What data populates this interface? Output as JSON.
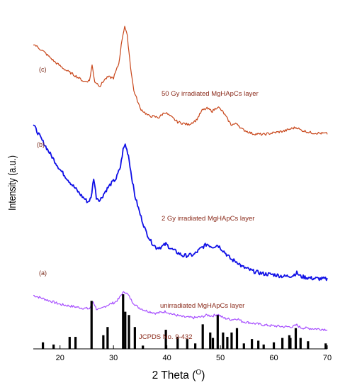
{
  "chart_data": {
    "type": "line",
    "xlabel": "2 Theta",
    "xlabel_unit": "O",
    "ylabel": "Intensity (a.u.)",
    "xlim": [
      15,
      70
    ],
    "x_ticks": [
      20,
      30,
      40,
      50,
      60,
      70
    ],
    "y_ticks_shown": false,
    "series": [
      {
        "tag": "(a)",
        "name": "unirradiated MgHApCs layer",
        "color": "#a64dff",
        "points": [
          [
            15,
            0.62
          ],
          [
            17,
            0.58
          ],
          [
            20,
            0.52
          ],
          [
            22,
            0.5
          ],
          [
            24,
            0.48
          ],
          [
            25.5,
            0.47
          ],
          [
            26.2,
            0.55
          ],
          [
            26.8,
            0.47
          ],
          [
            27.5,
            0.46
          ],
          [
            28.5,
            0.5
          ],
          [
            29.2,
            0.52
          ],
          [
            30.2,
            0.54
          ],
          [
            31,
            0.58
          ],
          [
            31.6,
            0.64
          ],
          [
            32.2,
            0.66
          ],
          [
            32.8,
            0.62
          ],
          [
            33.5,
            0.55
          ],
          [
            34.5,
            0.49
          ],
          [
            36,
            0.45
          ],
          [
            38,
            0.42
          ],
          [
            39.8,
            0.44
          ],
          [
            41,
            0.41
          ],
          [
            43,
            0.38
          ],
          [
            45,
            0.37
          ],
          [
            46.5,
            0.38
          ],
          [
            47.5,
            0.4
          ],
          [
            48.5,
            0.39
          ],
          [
            49.5,
            0.41
          ],
          [
            50.5,
            0.37
          ],
          [
            52,
            0.35
          ],
          [
            53.2,
            0.36
          ],
          [
            54,
            0.33
          ],
          [
            56,
            0.31
          ],
          [
            58,
            0.29
          ],
          [
            60,
            0.28
          ],
          [
            62,
            0.27
          ],
          [
            63.5,
            0.27
          ],
          [
            64.3,
            0.29
          ],
          [
            65,
            0.26
          ],
          [
            67,
            0.25
          ],
          [
            70,
            0.24
          ]
        ]
      },
      {
        "tag": "(b)",
        "name": "2 Gy irradiated MgHApCs layer",
        "color": "#1010e6",
        "points": [
          [
            15,
            2.52
          ],
          [
            16.5,
            2.36
          ],
          [
            18,
            2.21
          ],
          [
            20,
            2.02
          ],
          [
            22,
            1.87
          ],
          [
            24,
            1.73
          ],
          [
            25.2,
            1.66
          ],
          [
            25.8,
            1.7
          ],
          [
            26.3,
            1.93
          ],
          [
            26.8,
            1.71
          ],
          [
            27.5,
            1.68
          ],
          [
            28.5,
            1.78
          ],
          [
            29.5,
            1.86
          ],
          [
            30.5,
            1.92
          ],
          [
            31.3,
            2.05
          ],
          [
            31.8,
            2.24
          ],
          [
            32.2,
            2.3
          ],
          [
            32.8,
            2.18
          ],
          [
            33.4,
            1.94
          ],
          [
            34,
            1.73
          ],
          [
            35,
            1.52
          ],
          [
            36,
            1.34
          ],
          [
            37,
            1.22
          ],
          [
            38,
            1.15
          ],
          [
            39,
            1.16
          ],
          [
            39.8,
            1.19
          ],
          [
            41,
            1.13
          ],
          [
            43,
            1.06
          ],
          [
            45,
            1.07
          ],
          [
            46.5,
            1.15
          ],
          [
            47.5,
            1.19
          ],
          [
            48.5,
            1.16
          ],
          [
            49.5,
            1.18
          ],
          [
            50.5,
            1.12
          ],
          [
            52,
            1.02
          ],
          [
            53.2,
            0.99
          ],
          [
            54,
            0.94
          ],
          [
            56,
            0.89
          ],
          [
            58,
            0.86
          ],
          [
            60,
            0.85
          ],
          [
            62,
            0.83
          ],
          [
            63.5,
            0.84
          ],
          [
            64.3,
            0.87
          ],
          [
            65,
            0.83
          ],
          [
            67,
            0.81
          ],
          [
            70,
            0.8
          ]
        ]
      },
      {
        "tag": "(c)",
        "name": "50 Gy irradiated MgHApCs layer",
        "color": "#c8461a",
        "points": [
          [
            15,
            3.42
          ],
          [
            17,
            3.33
          ],
          [
            19,
            3.22
          ],
          [
            21,
            3.13
          ],
          [
            23,
            3.06
          ],
          [
            24.5,
            3.0
          ],
          [
            25.5,
            3.01
          ],
          [
            26,
            3.18
          ],
          [
            26.5,
            3.0
          ],
          [
            27.5,
            2.95
          ],
          [
            28.3,
            3.02
          ],
          [
            29,
            3.05
          ],
          [
            30,
            3.04
          ],
          [
            31,
            3.2
          ],
          [
            31.6,
            3.47
          ],
          [
            32.1,
            3.62
          ],
          [
            32.6,
            3.5
          ],
          [
            33.2,
            3.16
          ],
          [
            33.8,
            2.9
          ],
          [
            35,
            2.7
          ],
          [
            36.5,
            2.62
          ],
          [
            38.5,
            2.6
          ],
          [
            39.6,
            2.66
          ],
          [
            40.5,
            2.62
          ],
          [
            42,
            2.55
          ],
          [
            44,
            2.52
          ],
          [
            45.5,
            2.57
          ],
          [
            46.6,
            2.68
          ],
          [
            47.5,
            2.7
          ],
          [
            48.5,
            2.67
          ],
          [
            49.5,
            2.72
          ],
          [
            50.5,
            2.66
          ],
          [
            52,
            2.52
          ],
          [
            53.2,
            2.53
          ],
          [
            54,
            2.47
          ],
          [
            56,
            2.42
          ],
          [
            58,
            2.41
          ],
          [
            60,
            2.43
          ],
          [
            62,
            2.45
          ],
          [
            63.5,
            2.48
          ],
          [
            64.3,
            2.49
          ],
          [
            65,
            2.46
          ],
          [
            67,
            2.43
          ],
          [
            70,
            2.42
          ]
        ]
      }
    ],
    "reference": {
      "name": "JCPDS No. 9-432",
      "type": "bar",
      "color": "#000000",
      "positions": [
        16.8,
        18.8,
        21.8,
        22.9,
        25.9,
        28.1,
        28.9,
        31.8,
        32.2,
        32.9,
        34.0,
        35.5,
        39.8,
        42.0,
        43.8,
        45.3,
        46.7,
        48.1,
        48.6,
        49.5,
        50.5,
        51.3,
        52.1,
        53.1,
        54.4,
        55.9,
        57.1,
        58.1,
        60.0,
        61.6,
        62.9,
        63.1,
        64.1,
        65.0,
        66.4,
        69.7
      ],
      "intensities": [
        0.12,
        0.08,
        0.22,
        0.22,
        0.88,
        0.25,
        0.4,
        1.0,
        0.68,
        0.62,
        0.4,
        0.06,
        0.35,
        0.22,
        0.18,
        0.1,
        0.45,
        0.3,
        0.2,
        0.62,
        0.3,
        0.22,
        0.3,
        0.38,
        0.1,
        0.18,
        0.15,
        0.08,
        0.12,
        0.2,
        0.25,
        0.2,
        0.38,
        0.2,
        0.14,
        0.1
      ]
    }
  }
}
